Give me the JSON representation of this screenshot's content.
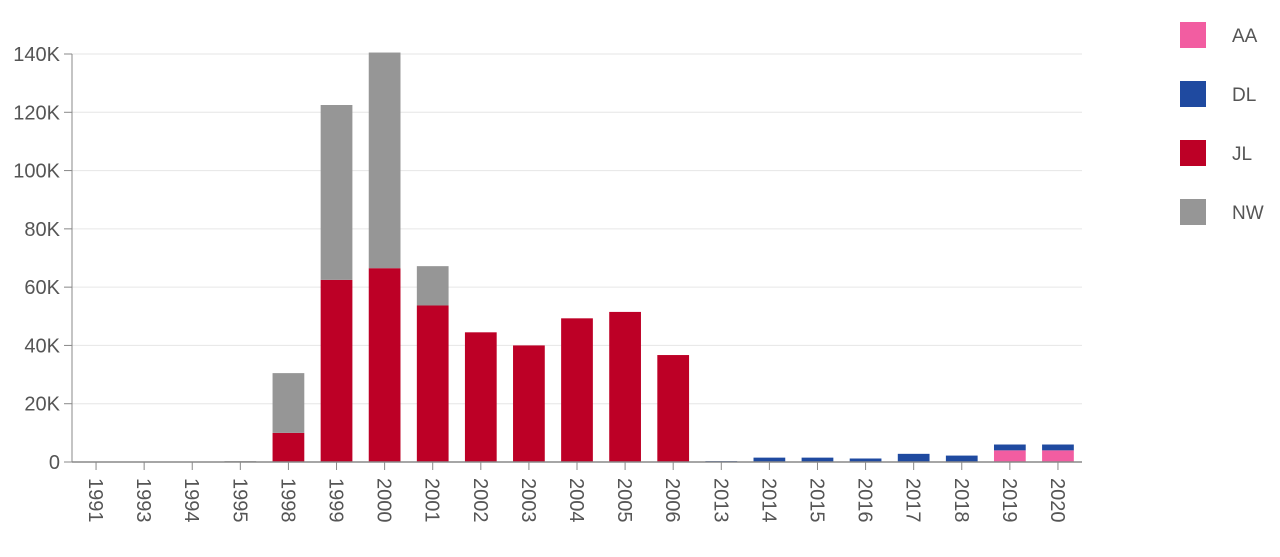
{
  "chart_data": {
    "type": "bar",
    "stacked": true,
    "categories": [
      "1991",
      "1993",
      "1994",
      "1995",
      "1998",
      "1999",
      "2000",
      "2001",
      "2002",
      "2003",
      "2004",
      "2005",
      "2006",
      "2013",
      "2014",
      "2015",
      "2016",
      "2017",
      "2018",
      "2019",
      "2020"
    ],
    "series": [
      {
        "name": "AA",
        "color": "#f25da1",
        "values": [
          0,
          0,
          0,
          0,
          0,
          0,
          0,
          0,
          0,
          0,
          0,
          0,
          0,
          0,
          0,
          0,
          0,
          0,
          0,
          4000,
          4000
        ]
      },
      {
        "name": "DL",
        "color": "#1f4aa0",
        "values": [
          0,
          0,
          0,
          0,
          0,
          0,
          0,
          0,
          0,
          0,
          0,
          0,
          0,
          300,
          1500,
          1500,
          1200,
          2800,
          2200,
          2000,
          2000
        ]
      },
      {
        "name": "JL",
        "color": "#bd0026",
        "values": [
          0,
          0,
          0,
          0,
          10000,
          62500,
          66500,
          53700,
          44500,
          40000,
          49300,
          51500,
          36700,
          0,
          0,
          0,
          0,
          0,
          0,
          0,
          0
        ]
      },
      {
        "name": "NW",
        "color": "#969696",
        "values": [
          0,
          0,
          0,
          300,
          20500,
          60000,
          74000,
          13500,
          0,
          0,
          0,
          0,
          0,
          0,
          0,
          0,
          0,
          0,
          0,
          0,
          0
        ]
      }
    ],
    "yticks": [
      "0",
      "20K",
      "40K",
      "60K",
      "80K",
      "100K",
      "120K",
      "140K"
    ],
    "ylim": [
      0,
      140000
    ],
    "grid": true,
    "legend_position": "right"
  }
}
